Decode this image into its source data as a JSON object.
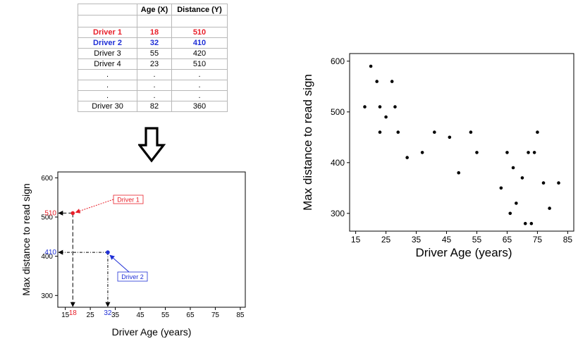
{
  "table": {
    "headers": [
      "",
      "Age (X)",
      "Distance (Y)"
    ],
    "rows": [
      {
        "label": "Driver 1",
        "age": "18",
        "distance": "510",
        "style": "red"
      },
      {
        "label": "Driver 2",
        "age": "32",
        "distance": "410",
        "style": "blue"
      },
      {
        "label": "Driver 3",
        "age": "55",
        "distance": "420",
        "style": ""
      },
      {
        "label": "Driver 4",
        "age": "23",
        "distance": "510",
        "style": ""
      },
      {
        "label": ".",
        "age": ".",
        "distance": ".",
        "style": ""
      },
      {
        "label": ".",
        "age": ".",
        "distance": ".",
        "style": ""
      },
      {
        "label": ".",
        "age": ".",
        "distance": ".",
        "style": ""
      },
      {
        "label": "Driver 30",
        "age": "82",
        "distance": "360",
        "style": ""
      }
    ]
  },
  "chart_data": [
    {
      "type": "scatter",
      "xlabel": "Driver Age (years)",
      "ylabel": "Max distance to read sign",
      "xticks": [
        15,
        25,
        35,
        45,
        55,
        65,
        75,
        85
      ],
      "yticks": [
        300,
        400,
        500,
        600
      ],
      "xlim": [
        12,
        87
      ],
      "ylim": [
        270,
        615
      ],
      "points": [
        {
          "x": 18,
          "y": 510,
          "color": "#e8202a"
        },
        {
          "x": 32,
          "y": 410,
          "color": "#1f2fd6"
        }
      ],
      "annotations": [
        {
          "text": "Driver 1",
          "color": "#e8202a"
        },
        {
          "text": "Driver 2",
          "color": "#1f2fd6"
        },
        {
          "text": "510",
          "color": "#e8202a"
        },
        {
          "text": "410",
          "color": "#1f2fd6"
        },
        {
          "text": "18",
          "color": "#e8202a"
        },
        {
          "text": "32",
          "color": "#1f2fd6"
        }
      ]
    },
    {
      "type": "scatter",
      "xlabel": "Driver Age (years)",
      "ylabel": "Max distance to read sign",
      "xticks": [
        15,
        25,
        35,
        45,
        55,
        65,
        75,
        85
      ],
      "yticks": [
        300,
        400,
        500,
        600
      ],
      "xlim": [
        13,
        87
      ],
      "ylim": [
        265,
        615
      ],
      "x": [
        18,
        20,
        22,
        23,
        23,
        25,
        27,
        28,
        29,
        32,
        37,
        41,
        46,
        49,
        53,
        55,
        63,
        65,
        66,
        67,
        68,
        70,
        71,
        72,
        73,
        74,
        75,
        77,
        79,
        82
      ],
      "y": [
        510,
        590,
        560,
        510,
        460,
        490,
        560,
        510,
        460,
        410,
        420,
        460,
        450,
        380,
        460,
        420,
        350,
        420,
        300,
        390,
        320,
        370,
        280,
        420,
        280,
        420,
        460,
        360,
        310,
        360
      ]
    }
  ]
}
